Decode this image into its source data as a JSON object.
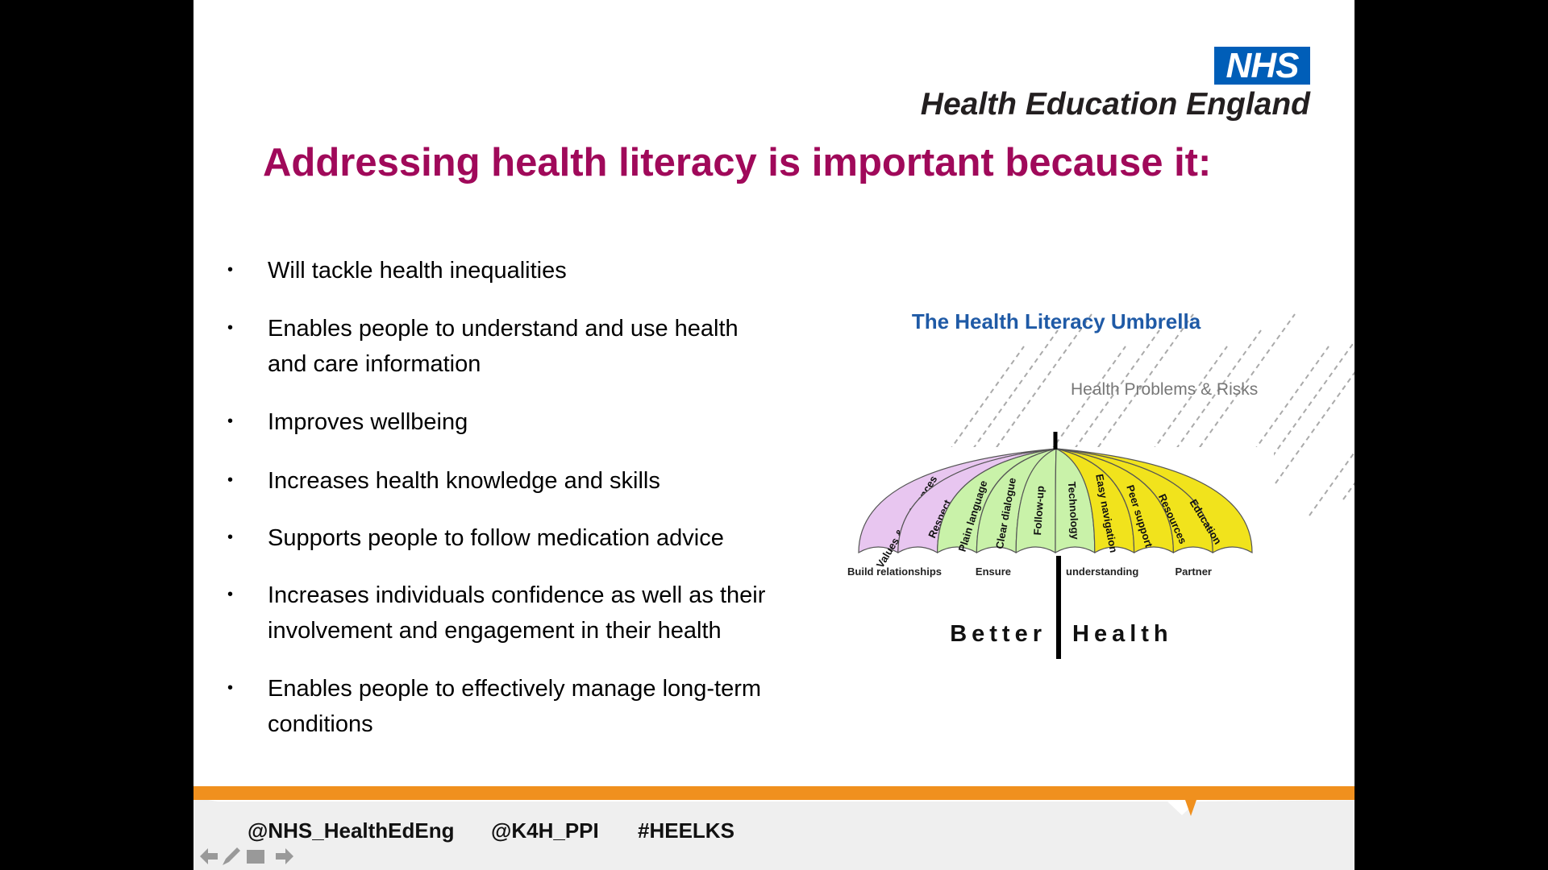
{
  "header": {
    "logo": "NHS",
    "org": "Health Education England"
  },
  "title": "Addressing health literacy is important because it:",
  "bullets": [
    [
      "Will tackle health inequalities"
    ],
    [
      "Enables people to understand and use health",
      "and care information"
    ],
    [
      "Improves wellbeing"
    ],
    [
      "Increases health knowledge and skills"
    ],
    [
      "Supports  people to follow medication advice"
    ],
    [
      "Increases individuals confidence as well as their",
      "involvement and engagement in their health"
    ],
    [
      "Enables people to effectively manage long-term",
      "conditions"
    ]
  ],
  "umbrella": {
    "title": "The Health Literacy Umbrella",
    "caption": "Health Problems & Risks",
    "segments": [
      "Values & preferences",
      "Respect",
      "Plain language",
      "Clear dialogue",
      "Follow-up",
      "Technology",
      "Easy navigation",
      "Peer support",
      "Resources",
      "Education"
    ],
    "bottom_labels": [
      "Build relationships",
      "Ensure",
      "understanding",
      "Partner"
    ],
    "base_left": "Better",
    "base_right": "Health"
  },
  "footer": {
    "handles": [
      "@NHS_HealthEdEng",
      "@K4H_PPI",
      "#HEELKS"
    ]
  }
}
